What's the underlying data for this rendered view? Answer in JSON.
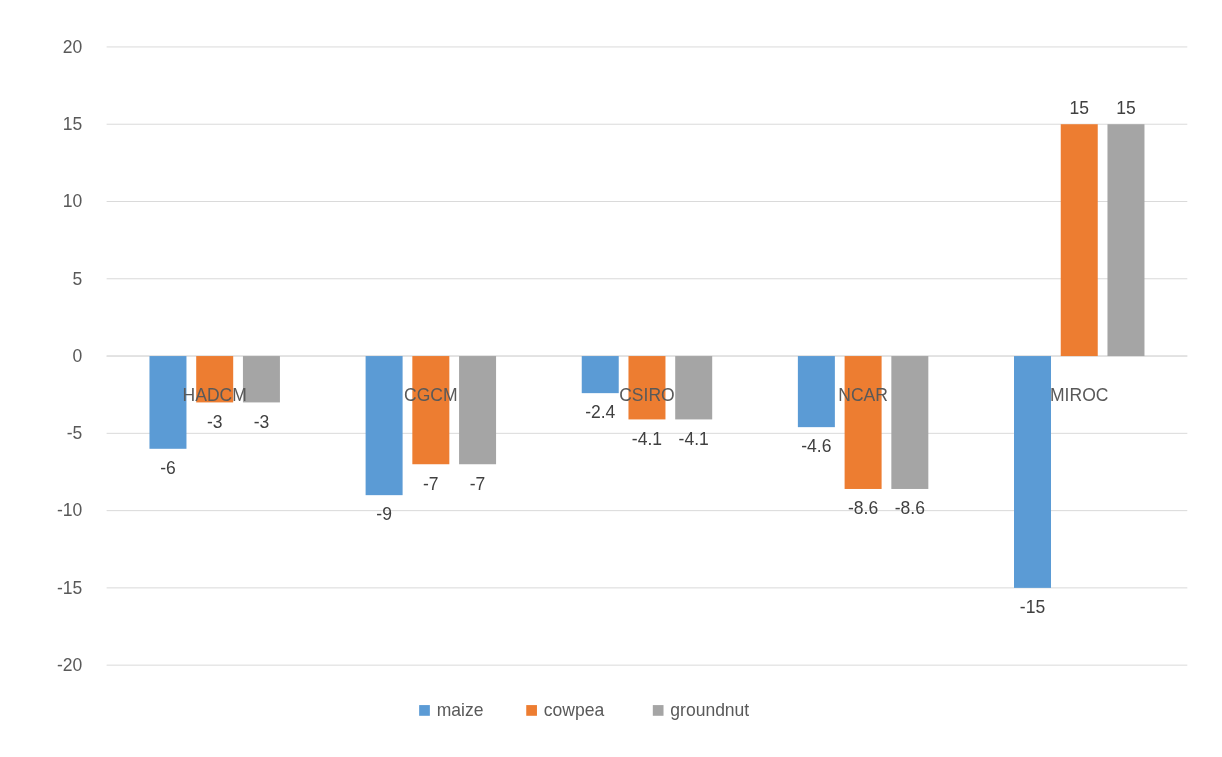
{
  "chart_data": {
    "type": "bar",
    "categories": [
      "HADCM",
      "CGCM",
      "CSIRO",
      "NCAR",
      "MIROC"
    ],
    "series": [
      {
        "name": "maize",
        "color": "#5b9bd5",
        "values": [
          -6,
          -9,
          -2.4,
          -4.6,
          -15
        ]
      },
      {
        "name": "cowpea",
        "color": "#ed7d31",
        "values": [
          -3,
          -7,
          -4.1,
          -8.6,
          15
        ]
      },
      {
        "name": "groundnut",
        "color": "#a5a5a5",
        "values": [
          -3,
          -7,
          -4.1,
          -8.6,
          15
        ]
      }
    ],
    "ylim": [
      -20,
      20
    ],
    "yticks": [
      -20,
      -15,
      -10,
      -5,
      0,
      5,
      10,
      15,
      20
    ],
    "grid": "y",
    "legend": "bottom",
    "data_labels": true
  }
}
